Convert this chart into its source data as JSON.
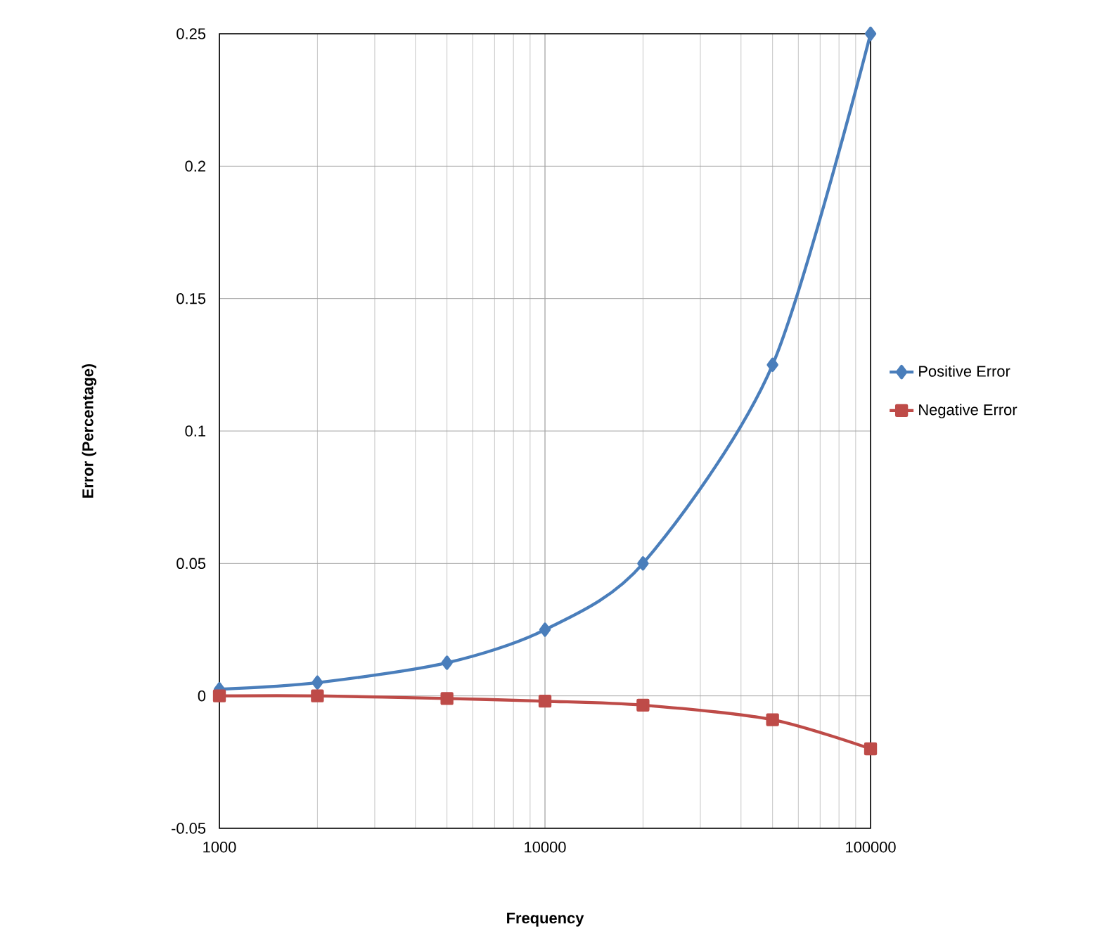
{
  "chart_data": {
    "type": "line",
    "xlabel": "Frequency",
    "ylabel": "Error (Percentage)",
    "x": [
      1000,
      2000,
      5000,
      10000,
      20000,
      50000,
      100000
    ],
    "series": [
      {
        "name": "Positive Error",
        "color": "#4a7ebb",
        "marker": "diamond",
        "values": [
          0.0025,
          0.005,
          0.0125,
          0.025,
          0.05,
          0.125,
          0.25
        ]
      },
      {
        "name": "Negative Error",
        "color": "#be4b48",
        "marker": "square",
        "values": [
          0,
          0,
          -0.001,
          -0.002,
          -0.0035,
          -0.009,
          -0.02
        ]
      }
    ],
    "log": "x",
    "xlim": [
      1000,
      100000
    ],
    "xticks": [
      1000,
      10000,
      100000
    ],
    "ylim": [
      -0.05,
      0.25
    ],
    "yticks": [
      -0.05,
      0,
      0.05,
      0.1,
      0.15,
      0.2,
      0.25
    ],
    "grid": true,
    "legend": "right",
    "line_style": "solid"
  }
}
